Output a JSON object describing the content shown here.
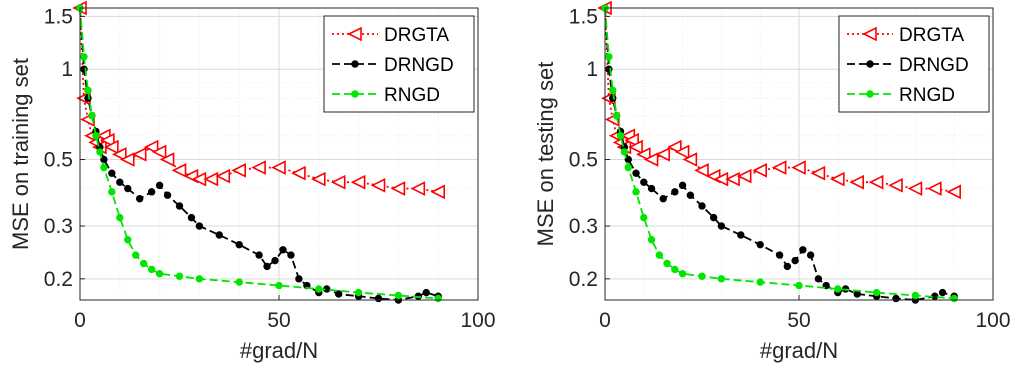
{
  "chart_data": [
    {
      "type": "line",
      "xlabel": "#grad/N",
      "ylabel": "MSE on training set",
      "xlim": [
        0,
        100
      ],
      "ylim": [
        0.17,
        1.6
      ],
      "yscale": "log",
      "x_ticks": [
        0,
        50,
        100
      ],
      "y_ticks": [
        0.2,
        0.3,
        0.5,
        1,
        1.5
      ],
      "y_tick_labels": [
        "0.2",
        "0.3",
        "0.5",
        "1",
        "1.5"
      ],
      "grid": true,
      "legend_position": "top-right",
      "series": [
        {
          "name": "DRGTA",
          "color": "#ff0000",
          "line_style": "dotted",
          "marker": "triangle-left",
          "x": [
            0,
            1,
            2,
            3,
            4,
            5,
            6,
            7,
            8,
            10,
            12,
            15,
            18,
            20,
            22,
            25,
            28,
            30,
            33,
            36,
            40,
            45,
            50,
            55,
            60,
            65,
            70,
            75,
            80,
            85,
            90
          ],
          "y": [
            1.6,
            0.8,
            0.68,
            0.6,
            0.57,
            0.55,
            0.6,
            0.58,
            0.55,
            0.52,
            0.5,
            0.52,
            0.55,
            0.53,
            0.5,
            0.46,
            0.44,
            0.43,
            0.43,
            0.44,
            0.46,
            0.47,
            0.47,
            0.45,
            0.43,
            0.42,
            0.42,
            0.41,
            0.4,
            0.4,
            0.39
          ]
        },
        {
          "name": "DRNGD",
          "color": "#000000",
          "line_style": "dashed",
          "marker": "circle",
          "x": [
            0,
            1,
            2,
            3,
            4,
            5,
            6,
            8,
            10,
            12,
            15,
            18,
            20,
            22,
            25,
            28,
            30,
            35,
            40,
            45,
            47,
            49,
            51,
            53,
            55,
            57,
            60,
            62,
            65,
            70,
            75,
            80,
            85,
            87,
            90
          ],
          "y": [
            1.6,
            1.0,
            0.8,
            0.7,
            0.62,
            0.55,
            0.5,
            0.45,
            0.42,
            0.4,
            0.37,
            0.39,
            0.41,
            0.38,
            0.35,
            0.32,
            0.3,
            0.28,
            0.26,
            0.24,
            0.22,
            0.23,
            0.25,
            0.24,
            0.2,
            0.19,
            0.18,
            0.185,
            0.178,
            0.175,
            0.172,
            0.17,
            0.175,
            0.18,
            0.175
          ]
        },
        {
          "name": "RNGD",
          "color": "#00e600",
          "line_style": "dashed",
          "marker": "circle",
          "x": [
            0,
            1,
            2,
            3,
            4,
            5,
            6,
            8,
            10,
            12,
            14,
            16,
            18,
            20,
            25,
            30,
            40,
            50,
            60,
            70,
            80,
            90
          ],
          "y": [
            1.6,
            1.1,
            0.85,
            0.7,
            0.6,
            0.53,
            0.47,
            0.39,
            0.32,
            0.27,
            0.24,
            0.225,
            0.215,
            0.208,
            0.204,
            0.2,
            0.195,
            0.19,
            0.185,
            0.18,
            0.176,
            0.172
          ]
        }
      ]
    },
    {
      "type": "line",
      "xlabel": "#grad/N",
      "ylabel": "MSE on testing set",
      "xlim": [
        0,
        100
      ],
      "ylim": [
        0.17,
        1.6
      ],
      "yscale": "log",
      "x_ticks": [
        0,
        50,
        100
      ],
      "y_ticks": [
        0.2,
        0.3,
        0.5,
        1,
        1.5
      ],
      "y_tick_labels": [
        "0.2",
        "0.3",
        "0.5",
        "1",
        "1.5"
      ],
      "grid": true,
      "legend_position": "top-right",
      "series": [
        {
          "name": "DRGTA",
          "color": "#ff0000",
          "line_style": "dotted",
          "marker": "triangle-left",
          "x": [
            0,
            1,
            2,
            3,
            4,
            5,
            6,
            7,
            8,
            10,
            12,
            15,
            18,
            20,
            22,
            25,
            28,
            30,
            33,
            36,
            40,
            45,
            50,
            55,
            60,
            65,
            70,
            75,
            80,
            85,
            90
          ],
          "y": [
            1.6,
            0.8,
            0.68,
            0.6,
            0.57,
            0.55,
            0.6,
            0.58,
            0.55,
            0.52,
            0.5,
            0.52,
            0.55,
            0.53,
            0.5,
            0.46,
            0.44,
            0.43,
            0.43,
            0.44,
            0.46,
            0.47,
            0.47,
            0.45,
            0.43,
            0.42,
            0.42,
            0.41,
            0.4,
            0.4,
            0.39
          ]
        },
        {
          "name": "DRNGD",
          "color": "#000000",
          "line_style": "dashed",
          "marker": "circle",
          "x": [
            0,
            1,
            2,
            3,
            4,
            5,
            6,
            8,
            10,
            12,
            15,
            18,
            20,
            22,
            25,
            28,
            30,
            35,
            40,
            45,
            47,
            49,
            51,
            53,
            55,
            57,
            60,
            62,
            65,
            70,
            75,
            80,
            85,
            87,
            90
          ],
          "y": [
            1.6,
            1.0,
            0.8,
            0.7,
            0.62,
            0.55,
            0.5,
            0.45,
            0.42,
            0.4,
            0.37,
            0.39,
            0.41,
            0.38,
            0.35,
            0.32,
            0.3,
            0.28,
            0.26,
            0.24,
            0.22,
            0.23,
            0.25,
            0.24,
            0.2,
            0.19,
            0.18,
            0.185,
            0.178,
            0.175,
            0.172,
            0.17,
            0.175,
            0.18,
            0.175
          ]
        },
        {
          "name": "RNGD",
          "color": "#00e600",
          "line_style": "dashed",
          "marker": "circle",
          "x": [
            0,
            1,
            2,
            3,
            4,
            5,
            6,
            8,
            10,
            12,
            14,
            16,
            18,
            20,
            25,
            30,
            40,
            50,
            60,
            70,
            80,
            90
          ],
          "y": [
            1.6,
            1.1,
            0.85,
            0.7,
            0.6,
            0.53,
            0.47,
            0.39,
            0.32,
            0.27,
            0.24,
            0.225,
            0.215,
            0.208,
            0.204,
            0.2,
            0.195,
            0.19,
            0.185,
            0.18,
            0.176,
            0.172
          ]
        }
      ]
    }
  ]
}
